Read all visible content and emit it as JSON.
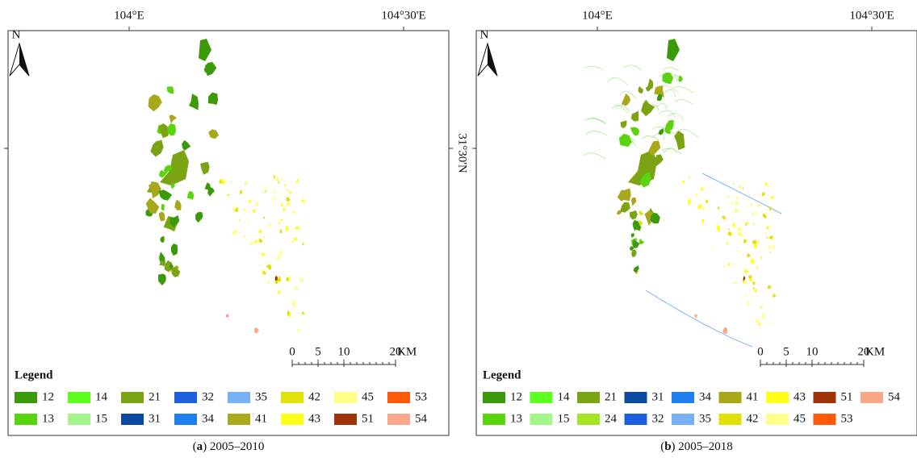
{
  "panels": [
    {
      "top_labels": [
        "104°E",
        "104°30'E"
      ],
      "right_label": "31°30'N",
      "north": "N",
      "scale_ticks": [
        0,
        5,
        10,
        20
      ],
      "scale_unit": "KM",
      "legend_title": "Legend",
      "legend_rows": [
        [
          {
            "label": "12",
            "color": "#3a9a0a"
          },
          {
            "label": "14",
            "color": "#5cff1e"
          },
          {
            "label": "21",
            "color": "#7aa413"
          },
          {
            "label": "32",
            "color": "#1b60de"
          },
          {
            "label": "35",
            "color": "#7ab0f5"
          },
          {
            "label": "42",
            "color": "#e1e10a"
          },
          {
            "label": "45",
            "color": "#ffff8a"
          },
          {
            "label": "53",
            "color": "#ff5a0a"
          }
        ],
        [
          {
            "label": "13",
            "color": "#5ad40e"
          },
          {
            "label": "15",
            "color": "#a4f58a"
          },
          {
            "label": "31",
            "color": "#0b4aa0"
          },
          {
            "label": "34",
            "color": "#1e7ff0"
          },
          {
            "label": "41",
            "color": "#a9a81a"
          },
          {
            "label": "43",
            "color": "#ffff1a"
          },
          {
            "label": "51",
            "color": "#a03408"
          },
          {
            "label": "54",
            "color": "#f8a888"
          }
        ]
      ],
      "caption_open": "(",
      "caption_letter": "a",
      "caption_rest": ") 2005–2010"
    },
    {
      "top_labels": [
        "104°E",
        "104°30'E"
      ],
      "right_label": "31°30'N",
      "north": "N",
      "scale_ticks": [
        0,
        5,
        10,
        20
      ],
      "scale_unit": "KM",
      "legend_title": "Legend",
      "legend_rows": [
        [
          {
            "label": "12",
            "color": "#3a9a0a"
          },
          {
            "label": "14",
            "color": "#5cff1e"
          },
          {
            "label": "21",
            "color": "#7aa413"
          },
          {
            "label": "31",
            "color": "#0b4aa0"
          },
          {
            "label": "34",
            "color": "#1e7ff0"
          },
          {
            "label": "41",
            "color": "#a9a81a"
          },
          {
            "label": "43",
            "color": "#ffff1a"
          },
          {
            "label": "51",
            "color": "#a03408"
          },
          {
            "label": "54",
            "color": "#f8a888"
          }
        ],
        [
          {
            "label": "13",
            "color": "#5ad40e"
          },
          {
            "label": "15",
            "color": "#a4f58a"
          },
          {
            "label": "24",
            "color": "#a4e622"
          },
          {
            "label": "32",
            "color": "#1b60de"
          },
          {
            "label": "35",
            "color": "#7ab0f5"
          },
          {
            "label": "42",
            "color": "#e1e10a"
          },
          {
            "label": "45",
            "color": "#ffff8a"
          },
          {
            "label": "53",
            "color": "#ff5a0a"
          }
        ]
      ],
      "caption_open": "(",
      "caption_letter": "b",
      "caption_rest": ") 2005–2018"
    }
  ]
}
